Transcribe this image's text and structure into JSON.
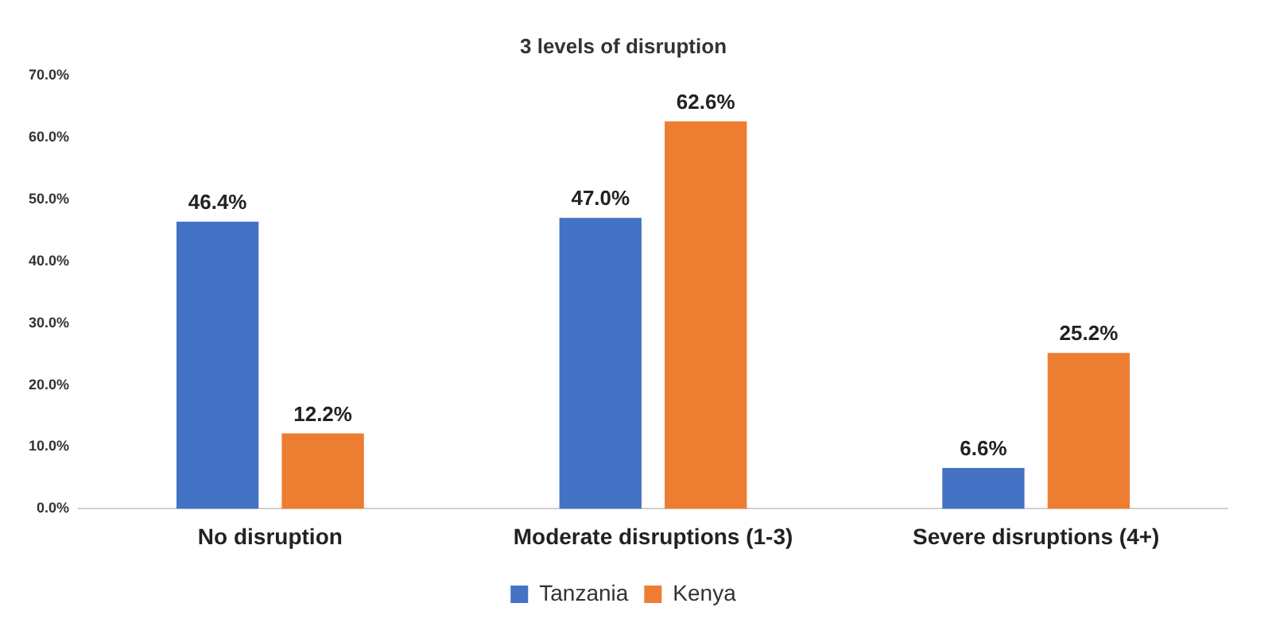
{
  "chart_data": {
    "type": "bar",
    "title": "3 levels of disruption",
    "categories": [
      "No disruption",
      "Moderate disruptions (1-3)",
      "Severe disruptions (4+)"
    ],
    "series": [
      {
        "name": "Tanzania",
        "color": "#4472c4",
        "values": [
          46.4,
          47.0,
          6.6
        ],
        "value_labels": [
          "46.4%",
          "47.0%",
          "6.6%"
        ]
      },
      {
        "name": "Kenya",
        "color": "#ed7d31",
        "values": [
          12.2,
          62.6,
          25.2
        ],
        "value_labels": [
          "12.2%",
          "62.6%",
          "25.2%"
        ]
      }
    ],
    "ylim": [
      0,
      70
    ],
    "yticks": [
      {
        "value": 0,
        "label": "0.0%"
      },
      {
        "value": 10,
        "label": "10.0%"
      },
      {
        "value": 20,
        "label": "20.0%"
      },
      {
        "value": 30,
        "label": "30.0%"
      },
      {
        "value": 40,
        "label": "40.0%"
      },
      {
        "value": 50,
        "label": "50.0%"
      },
      {
        "value": 60,
        "label": "60.0%"
      },
      {
        "value": 70,
        "label": "70.0%"
      }
    ],
    "grid": false,
    "legend": "bottom"
  }
}
